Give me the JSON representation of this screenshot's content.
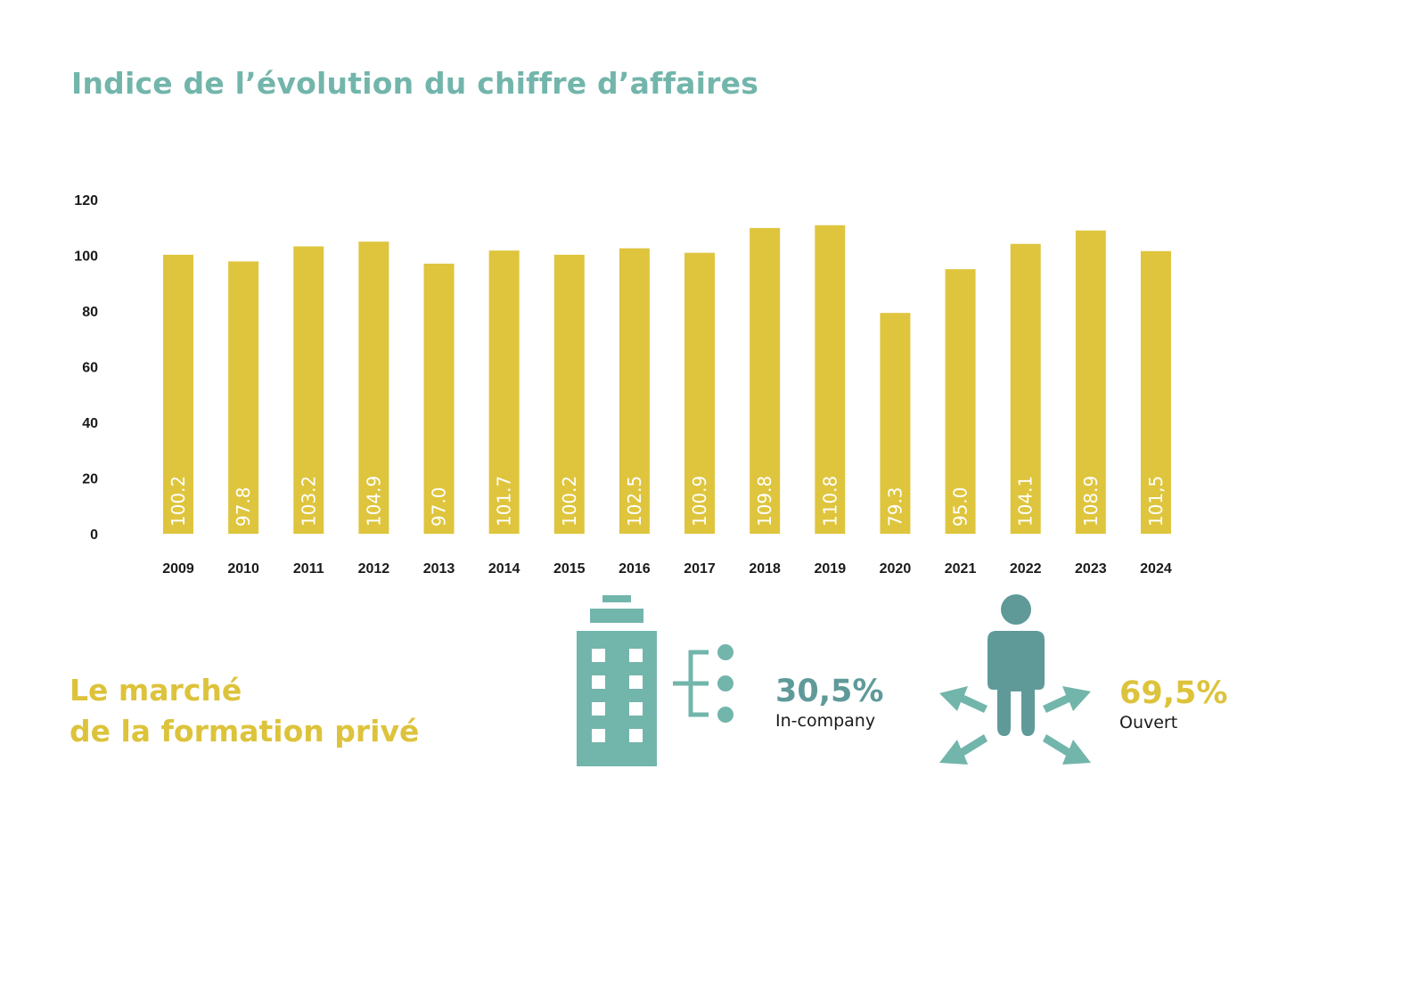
{
  "title": "Indice de l’évolution du chiffre d’affaires",
  "chart_data": {
    "type": "bar",
    "categories": [
      "2009",
      "2010",
      "2011",
      "2012",
      "2013",
      "2014",
      "2015",
      "2016",
      "2017",
      "2018",
      "2019",
      "2020",
      "2021",
      "2022",
      "2023",
      "2024"
    ],
    "values": [
      100.2,
      97.8,
      103.2,
      104.9,
      97.0,
      101.7,
      100.2,
      102.5,
      100.9,
      109.8,
      110.8,
      79.3,
      95.0,
      104.1,
      108.9,
      101.5
    ],
    "value_labels": [
      "100.2",
      "97.8",
      "103.2",
      "104.9",
      "97.0",
      "101.7",
      "100.2",
      "102.5",
      "100.9",
      "109.8",
      "110.8",
      "79.3",
      "95.0",
      "104.1",
      "108.9",
      "101,5"
    ],
    "yticks": [
      0,
      20,
      40,
      60,
      80,
      100,
      120
    ],
    "ylim": [
      0,
      120
    ],
    "grid": false,
    "legend": "none",
    "bar_color": "#dec53d",
    "label_color": "#ffffff"
  },
  "market": {
    "title_line1": "Le marché",
    "title_line2": "de la formation privé",
    "title_color": "#ddc33b",
    "in_company": {
      "value": "30,5%",
      "label": "In-company",
      "color": "#5f9a99",
      "icon": "office-building-icon"
    },
    "open": {
      "value": "69,5%",
      "label": "Ouvert",
      "color": "#ddc33b",
      "icon": "person-with-arrows-icon"
    }
  },
  "colors": {
    "accent_teal": "#72b5ab",
    "dark_teal": "#5f9a99",
    "yellow": "#dec53d"
  }
}
